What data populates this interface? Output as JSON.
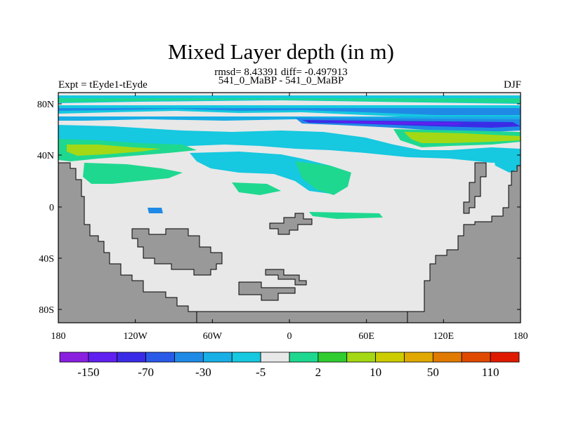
{
  "title": "Mixed Layer depth (in m)",
  "stats": "rmsd= 8.43391 diff= -0.497913",
  "subtitle": "541_0_MaBP - 541_0_MaBP",
  "left_label": "Expt = tEyde1-tEyde",
  "right_label": "DJF",
  "axes": {
    "x_ticks": [
      "180",
      "120W",
      "60W",
      "0",
      "60E",
      "120E",
      "180"
    ],
    "y_ticks": [
      "80N",
      "40N",
      "0",
      "40S",
      "80S"
    ]
  },
  "colorbar": {
    "colors": [
      "#8a1fe0",
      "#6020f0",
      "#3a2ce6",
      "#2a5ae8",
      "#1f8ae6",
      "#18aee6",
      "#16c8e0",
      "#e8e8e8",
      "#1fd890",
      "#30cc30",
      "#a4d814",
      "#cccc00",
      "#e0a800",
      "#e07a00",
      "#e04a00",
      "#e01a00"
    ],
    "labels": [
      "-150",
      "-70",
      "-30",
      "-5",
      "2",
      "10",
      "50",
      "110"
    ]
  },
  "colors": {
    "land": "#999999",
    "ocean": "#e8e8e8",
    "outline": "#000000"
  }
}
